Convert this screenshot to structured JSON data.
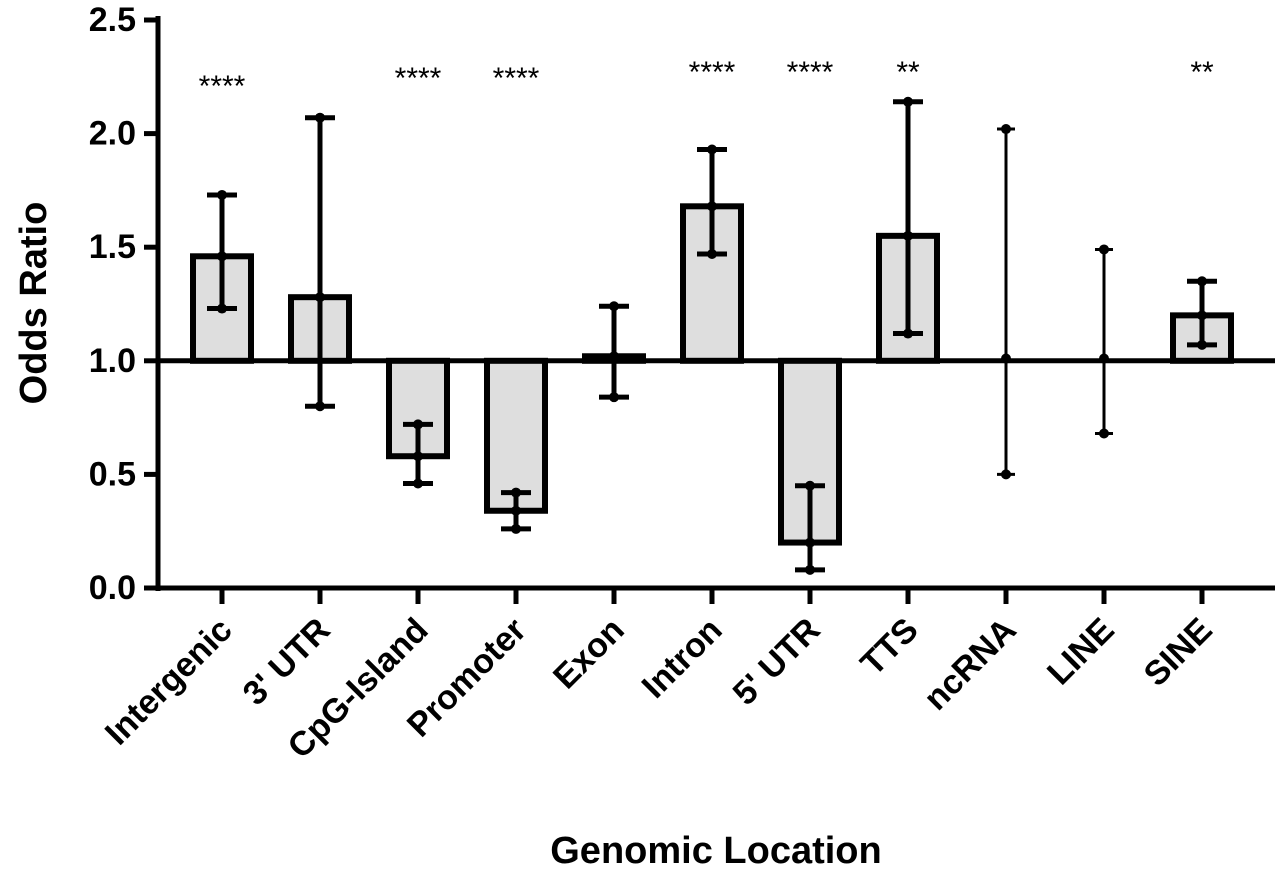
{
  "chart_data": {
    "type": "bar",
    "title": "",
    "xlabel": "Genomic Location",
    "ylabel": "Odds Ratio",
    "ylim": [
      0,
      2.5
    ],
    "yticks": [
      "0.0",
      "0.5",
      "1.0",
      "1.5",
      "2.0",
      "2.5"
    ],
    "baseline": 1.0,
    "grid": false,
    "categories": [
      "Intergenic",
      "3' UTR",
      "CpG-Island",
      "Promoter",
      "Exon",
      "Intron",
      "5' UTR",
      "TTS",
      "ncRNA",
      "LINE",
      "SINE"
    ],
    "values": [
      1.46,
      1.28,
      0.58,
      0.34,
      1.02,
      1.68,
      0.2,
      1.55,
      1.01,
      1.01,
      1.2
    ],
    "error_lower": [
      1.23,
      0.8,
      0.46,
      0.26,
      0.84,
      1.47,
      0.08,
      1.12,
      0.5,
      0.68,
      1.07
    ],
    "error_upper": [
      1.73,
      2.07,
      0.72,
      0.42,
      1.24,
      1.93,
      0.45,
      2.14,
      2.02,
      1.49,
      1.35
    ],
    "bar_visible": [
      true,
      true,
      true,
      true,
      true,
      true,
      true,
      true,
      false,
      false,
      true
    ],
    "significance": [
      "****",
      "",
      "****",
      "****",
      "",
      "****",
      "****",
      "**",
      "",
      "",
      "**"
    ],
    "bar_fill": "#dedede",
    "bar_stroke": "#000000"
  }
}
